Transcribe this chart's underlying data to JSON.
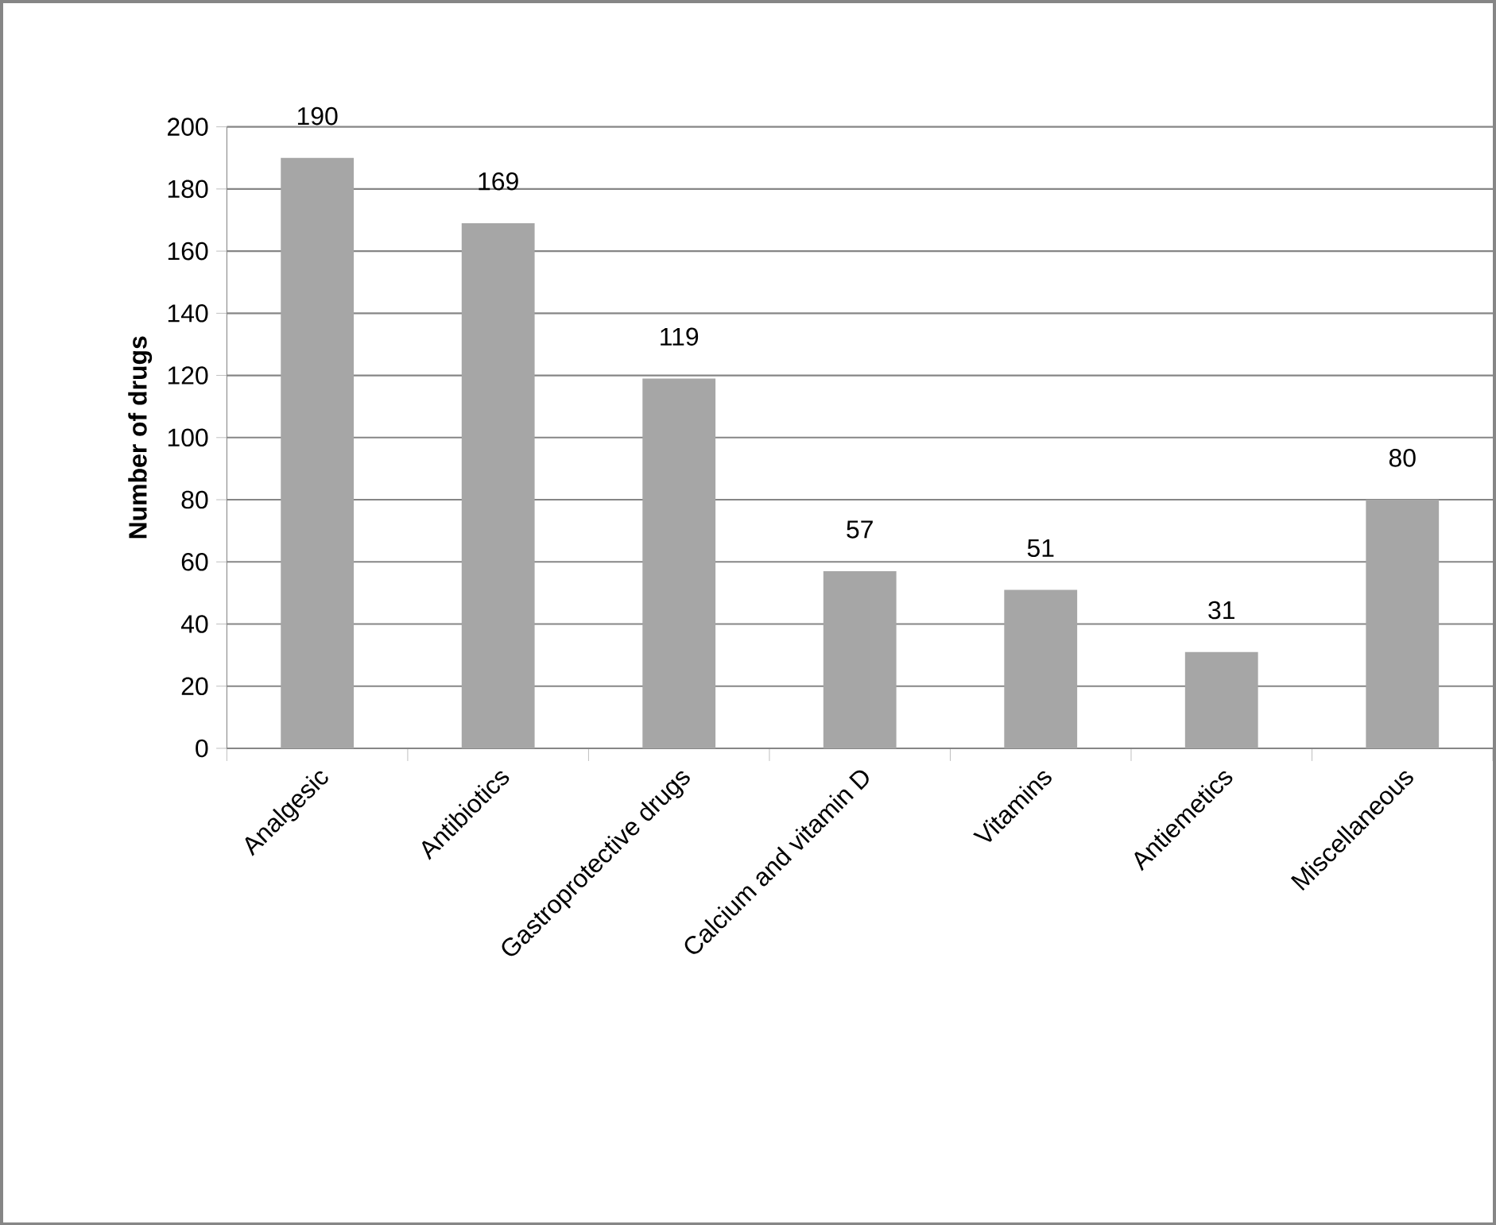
{
  "chart_data": {
    "type": "bar",
    "ylabel": "Number of drugs",
    "categories": [
      "Analgesic",
      "Antibiotics",
      "Gastroprotective drugs",
      "Calcium and vitamin D",
      "Vitamins",
      "Antiemetics",
      "Miscellaneous"
    ],
    "values": [
      190,
      169,
      119,
      57,
      51,
      31,
      80
    ],
    "color": "#a6a6a6",
    "ylim": [
      0,
      200
    ],
    "yticks": [
      0,
      20,
      40,
      60,
      80,
      100,
      120,
      140,
      160,
      180,
      200
    ],
    "grid": "y",
    "data_labels": true
  }
}
